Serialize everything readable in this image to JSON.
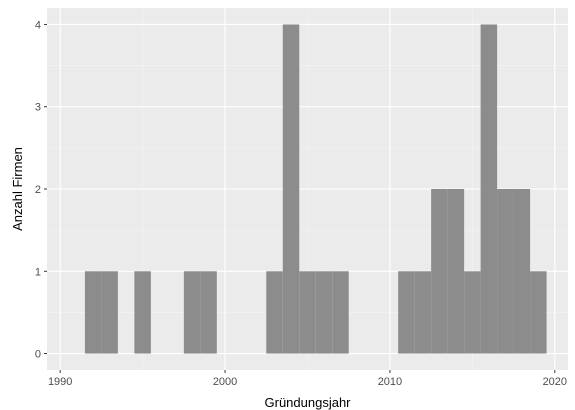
{
  "chart_data": {
    "type": "bar",
    "xlabel": "Gründungsjahr",
    "ylabel": "Anzahl Firmen",
    "xlim": [
      1989.2,
      2020.8
    ],
    "ylim": [
      -0.2,
      4.2
    ],
    "x_ticks": [
      1990,
      2000,
      2010,
      2020
    ],
    "y_ticks": [
      0,
      1,
      2,
      3,
      4
    ],
    "bin_width": 1,
    "bars": [
      {
        "start": 1991.5,
        "end": 1992.5,
        "value": 1
      },
      {
        "start": 1992.5,
        "end": 1993.5,
        "value": 1
      },
      {
        "start": 1994.5,
        "end": 1995.5,
        "value": 1
      },
      {
        "start": 1997.5,
        "end": 1998.5,
        "value": 1
      },
      {
        "start": 1998.5,
        "end": 1999.5,
        "value": 1
      },
      {
        "start": 2002.5,
        "end": 2003.5,
        "value": 1
      },
      {
        "start": 2003.5,
        "end": 2004.5,
        "value": 4
      },
      {
        "start": 2004.5,
        "end": 2005.5,
        "value": 1
      },
      {
        "start": 2005.5,
        "end": 2006.5,
        "value": 1
      },
      {
        "start": 2006.5,
        "end": 2007.5,
        "value": 1
      },
      {
        "start": 2010.5,
        "end": 2011.5,
        "value": 1
      },
      {
        "start": 2011.5,
        "end": 2012.5,
        "value": 1
      },
      {
        "start": 2012.5,
        "end": 2013.5,
        "value": 2
      },
      {
        "start": 2013.5,
        "end": 2014.5,
        "value": 2
      },
      {
        "start": 2014.5,
        "end": 2015.5,
        "value": 1
      },
      {
        "start": 2015.5,
        "end": 2016.5,
        "value": 4
      },
      {
        "start": 2016.5,
        "end": 2017.5,
        "value": 2
      },
      {
        "start": 2017.5,
        "end": 2018.5,
        "value": 2
      },
      {
        "start": 2018.5,
        "end": 2019.5,
        "value": 1
      }
    ],
    "grid": true,
    "colors": {
      "panel_background": "#ebebeb",
      "grid_major": "#ffffff",
      "grid_minor": "#f5f5f5",
      "bar_fill": "#8c8c8c"
    }
  }
}
